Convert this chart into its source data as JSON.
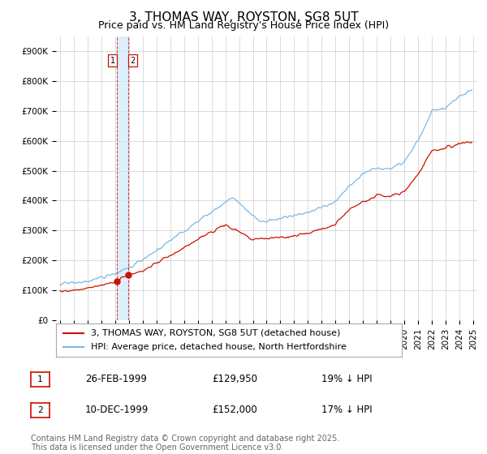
{
  "title": "3, THOMAS WAY, ROYSTON, SG8 5UT",
  "subtitle": "Price paid vs. HM Land Registry's House Price Index (HPI)",
  "ylim": [
    0,
    950000
  ],
  "yticks": [
    0,
    100000,
    200000,
    300000,
    400000,
    500000,
    600000,
    700000,
    800000,
    900000
  ],
  "ytick_labels": [
    "£0",
    "£100K",
    "£200K",
    "£300K",
    "£400K",
    "£500K",
    "£600K",
    "£700K",
    "£800K",
    "£900K"
  ],
  "hpi_color": "#7ab8e8",
  "price_color": "#cc1100",
  "bg_color": "#ffffff",
  "grid_color": "#cccccc",
  "legend_label_red": "3, THOMAS WAY, ROYSTON, SG8 5UT (detached house)",
  "legend_label_blue": "HPI: Average price, detached house, North Hertfordshire",
  "sale1_date": "26-FEB-1999",
  "sale1_price": "£129,950",
  "sale1_hpi": "19% ↓ HPI",
  "sale2_date": "10-DEC-1999",
  "sale2_price": "£152,000",
  "sale2_hpi": "17% ↓ HPI",
  "footnote": "Contains HM Land Registry data © Crown copyright and database right 2025.\nThis data is licensed under the Open Government Licence v3.0.",
  "title_fontsize": 11,
  "axis_fontsize": 7.5,
  "legend_fontsize": 8,
  "table_fontsize": 8.5,
  "footnote_fontsize": 7,
  "sale1_year": 1999.15,
  "sale2_year": 1999.92,
  "sale1_val": 129950,
  "sale2_val": 152000
}
